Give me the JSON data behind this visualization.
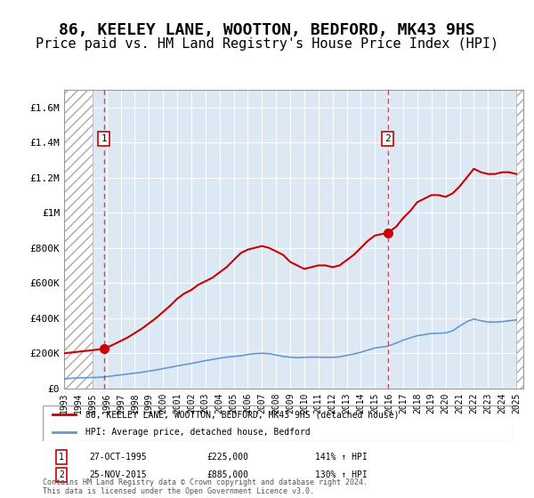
{
  "title": "86, KEELEY LANE, WOOTTON, BEDFORD, MK43 9HS",
  "subtitle": "Price paid vs. HM Land Registry's House Price Index (HPI)",
  "xlabel": "",
  "ylabel": "",
  "title_fontsize": 13,
  "subtitle_fontsize": 11,
  "background_color": "#ffffff",
  "plot_bg_color": "#dce9f5",
  "grid_color": "#ffffff",
  "hatch_color": "#b0b0b0",
  "sale1_year": 1995.82,
  "sale1_price": 225000,
  "sale2_year": 2015.9,
  "sale2_price": 885000,
  "ylim": [
    0,
    1700000
  ],
  "xlim": [
    1993,
    2025.5
  ],
  "yticks": [
    0,
    200000,
    400000,
    600000,
    800000,
    1000000,
    1200000,
    1400000,
    1600000
  ],
  "ytick_labels": [
    "£0",
    "£200K",
    "£400K",
    "£600K",
    "£800K",
    "£1M",
    "£1.2M",
    "£1.4M",
    "£1.6M"
  ],
  "xticks": [
    1993,
    1994,
    1995,
    1996,
    1997,
    1998,
    1999,
    2000,
    2001,
    2002,
    2003,
    2004,
    2005,
    2006,
    2007,
    2008,
    2009,
    2010,
    2011,
    2012,
    2013,
    2014,
    2015,
    2016,
    2017,
    2018,
    2019,
    2020,
    2021,
    2022,
    2023,
    2024,
    2025
  ],
  "legend1_label": "86, KEELEY LANE, WOOTTON, BEDFORD, MK43 9HS (detached house)",
  "legend2_label": "HPI: Average price, detached house, Bedford",
  "footer": "Contains HM Land Registry data © Crown copyright and database right 2024.\nThis data is licensed under the Open Government Licence v3.0.",
  "annotation1_label": "1",
  "annotation1_date": "27-OCT-1995",
  "annotation1_price": "£225,000",
  "annotation1_hpi": "141% ↑ HPI",
  "annotation2_label": "2",
  "annotation2_date": "25-NOV-2015",
  "annotation2_price": "£885,000",
  "annotation2_hpi": "130% ↑ HPI",
  "red_line_color": "#cc0000",
  "blue_line_color": "#6699cc",
  "red_dot_color": "#cc0000",
  "hatch_left_end": 1995.0,
  "hatch_right_start": 2025.0,
  "red_x": [
    1993.0,
    1995.82,
    1996.5,
    1997.5,
    1998.5,
    1999.5,
    2000.5,
    2001.0,
    2001.5,
    2002.0,
    2002.5,
    2003.0,
    2003.5,
    2004.0,
    2004.5,
    2005.0,
    2005.5,
    2006.0,
    2006.5,
    2007.0,
    2007.5,
    2008.0,
    2008.5,
    2009.0,
    2009.5,
    2010.0,
    2010.5,
    2011.0,
    2011.5,
    2012.0,
    2012.5,
    2013.0,
    2013.5,
    2014.0,
    2014.5,
    2015.0,
    2015.9,
    2016.5,
    2017.0,
    2017.5,
    2018.0,
    2018.5,
    2019.0,
    2019.5,
    2020.0,
    2020.5,
    2021.0,
    2021.5,
    2022.0,
    2022.5,
    2023.0,
    2023.5,
    2024.0,
    2024.5,
    2025.0
  ],
  "red_y": [
    200000,
    225000,
    250000,
    290000,
    340000,
    400000,
    470000,
    510000,
    540000,
    560000,
    590000,
    610000,
    630000,
    660000,
    690000,
    730000,
    770000,
    790000,
    800000,
    810000,
    800000,
    780000,
    760000,
    720000,
    700000,
    680000,
    690000,
    700000,
    700000,
    690000,
    700000,
    730000,
    760000,
    800000,
    840000,
    870000,
    885000,
    920000,
    970000,
    1010000,
    1060000,
    1080000,
    1100000,
    1100000,
    1090000,
    1110000,
    1150000,
    1200000,
    1250000,
    1230000,
    1220000,
    1220000,
    1230000,
    1230000,
    1220000
  ],
  "blue_x": [
    1993.0,
    1994.0,
    1995.0,
    1995.82,
    1996.5,
    1997.5,
    1998.5,
    1999.5,
    2000.5,
    2001.0,
    2001.5,
    2002.0,
    2002.5,
    2003.0,
    2003.5,
    2004.0,
    2004.5,
    2005.0,
    2005.5,
    2006.0,
    2006.5,
    2007.0,
    2007.5,
    2008.0,
    2008.5,
    2009.0,
    2009.5,
    2010.0,
    2010.5,
    2011.0,
    2011.5,
    2012.0,
    2012.5,
    2013.0,
    2013.5,
    2014.0,
    2014.5,
    2015.0,
    2015.9,
    2016.5,
    2017.0,
    2017.5,
    2018.0,
    2018.5,
    2019.0,
    2019.5,
    2020.0,
    2020.5,
    2021.0,
    2021.5,
    2022.0,
    2022.5,
    2023.0,
    2023.5,
    2024.0,
    2024.5,
    2025.0
  ],
  "blue_y": [
    55000,
    60000,
    62000,
    65000,
    72000,
    82000,
    92000,
    105000,
    120000,
    128000,
    135000,
    142000,
    150000,
    158000,
    165000,
    172000,
    178000,
    182000,
    186000,
    193000,
    198000,
    200000,
    198000,
    190000,
    182000,
    178000,
    175000,
    177000,
    178000,
    178000,
    177000,
    177000,
    180000,
    188000,
    196000,
    206000,
    218000,
    230000,
    240000,
    258000,
    275000,
    288000,
    300000,
    306000,
    313000,
    314000,
    316000,
    328000,
    355000,
    380000,
    395000,
    385000,
    378000,
    377000,
    380000,
    385000,
    390000
  ]
}
